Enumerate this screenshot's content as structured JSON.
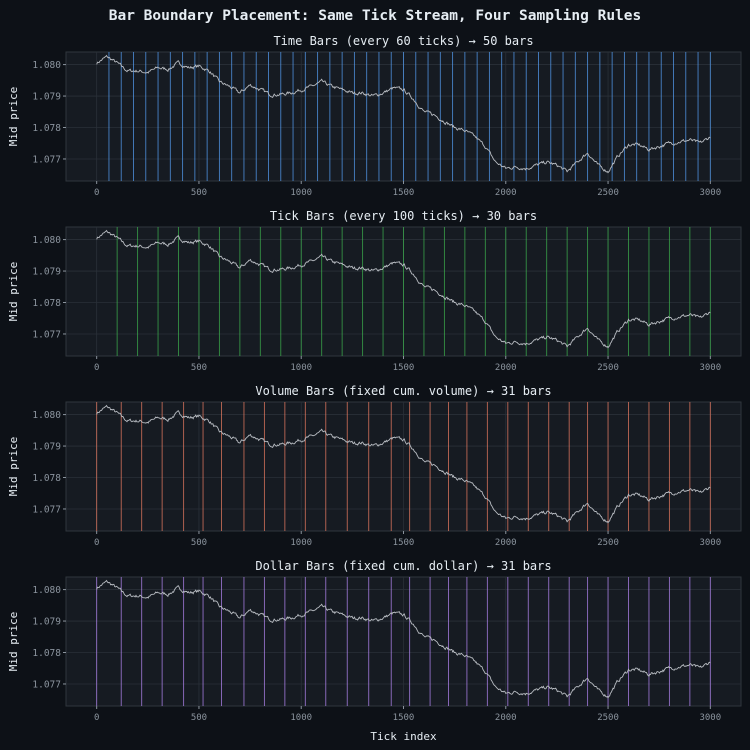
{
  "figure_title": "Bar Boundary Placement: Same Tick Stream, Four Sampling Rules",
  "colors": {
    "background": "#0d1117",
    "panel": "#161b22",
    "price_line": "#b8bcc2",
    "time_bars": "#58a6ff",
    "tick_bars": "#3fb950",
    "volume_bars": "#f78166",
    "dollar_bars": "#bc8cff"
  },
  "chart_data": [
    {
      "type": "line",
      "title": "Time Bars  (every 60 ticks)  →  50 bars",
      "ylabel": "Mid price",
      "xlabel": "",
      "xlim": [
        -150,
        3150
      ],
      "ylim": [
        1.0763,
        1.0804
      ],
      "x_ticks": [
        "0",
        "500",
        "1000",
        "1500",
        "2000",
        "2500",
        "3000"
      ],
      "y_ticks": [
        "1.077",
        "1.078",
        "1.079",
        "1.080"
      ],
      "grid": true,
      "boundary_color": "#58a6ff",
      "boundaries": [
        60,
        120,
        180,
        240,
        300,
        360,
        420,
        480,
        540,
        600,
        660,
        720,
        780,
        840,
        900,
        960,
        1020,
        1080,
        1140,
        1200,
        1260,
        1320,
        1380,
        1440,
        1500,
        1560,
        1620,
        1680,
        1740,
        1800,
        1860,
        1920,
        1980,
        2040,
        2100,
        2160,
        2220,
        2280,
        2340,
        2400,
        2460,
        2520,
        2580,
        2640,
        2700,
        2760,
        2820,
        2880,
        2940,
        3000
      ]
    },
    {
      "type": "line",
      "title": "Tick Bars  (every 100 ticks)  →  30 bars",
      "ylabel": "Mid price",
      "xlabel": "",
      "xlim": [
        -150,
        3150
      ],
      "ylim": [
        1.0763,
        1.0804
      ],
      "x_ticks": [
        "0",
        "500",
        "1000",
        "1500",
        "2000",
        "2500",
        "3000"
      ],
      "y_ticks": [
        "1.077",
        "1.078",
        "1.079",
        "1.080"
      ],
      "grid": true,
      "boundary_color": "#3fb950",
      "boundaries": [
        100,
        200,
        300,
        400,
        500,
        600,
        700,
        800,
        900,
        1000,
        1100,
        1200,
        1300,
        1400,
        1500,
        1600,
        1700,
        1800,
        1900,
        2000,
        2100,
        2200,
        2300,
        2400,
        2500,
        2600,
        2700,
        2800,
        2900,
        3000
      ]
    },
    {
      "type": "line",
      "title": "Volume Bars  (fixed cum. volume)  →  31 bars",
      "ylabel": "Mid price",
      "xlabel": "",
      "xlim": [
        -150,
        3150
      ],
      "ylim": [
        1.0763,
        1.0804
      ],
      "x_ticks": [
        "0",
        "500",
        "1000",
        "1500",
        "2000",
        "2500",
        "3000"
      ],
      "y_ticks": [
        "1.077",
        "1.078",
        "1.079",
        "1.080"
      ],
      "grid": true,
      "boundary_color": "#f78166",
      "boundaries": [
        0,
        120,
        220,
        320,
        425,
        520,
        610,
        720,
        820,
        920,
        1020,
        1120,
        1225,
        1330,
        1440,
        1530,
        1630,
        1720,
        1810,
        1910,
        2010,
        2110,
        2210,
        2310,
        2400,
        2500,
        2600,
        2700,
        2800,
        2900,
        3000
      ]
    },
    {
      "type": "line",
      "title": "Dollar Bars  (fixed cum. dollar)  →  31 bars",
      "ylabel": "Mid price",
      "xlabel": "Tick index",
      "xlim": [
        -150,
        3150
      ],
      "ylim": [
        1.0763,
        1.0804
      ],
      "x_ticks": [
        "0",
        "500",
        "1000",
        "1500",
        "2000",
        "2500",
        "3000"
      ],
      "y_ticks": [
        "1.077",
        "1.078",
        "1.079",
        "1.080"
      ],
      "grid": true,
      "boundary_color": "#bc8cff",
      "boundaries": [
        0,
        120,
        220,
        320,
        425,
        520,
        610,
        720,
        820,
        920,
        1020,
        1120,
        1225,
        1330,
        1440,
        1530,
        1630,
        1720,
        1810,
        1910,
        2010,
        2110,
        2210,
        2310,
        2400,
        2500,
        2600,
        2700,
        2800,
        2900,
        3000
      ]
    }
  ],
  "price_series": {
    "name": "",
    "x": [
      0,
      50,
      100,
      150,
      200,
      250,
      300,
      350,
      400,
      450,
      500,
      550,
      600,
      650,
      700,
      750,
      800,
      850,
      900,
      950,
      1000,
      1050,
      1100,
      1150,
      1200,
      1250,
      1300,
      1350,
      1400,
      1450,
      1500,
      1550,
      1600,
      1650,
      1700,
      1750,
      1800,
      1850,
      1900,
      1950,
      2000,
      2050,
      2100,
      2150,
      2200,
      2250,
      2300,
      2350,
      2400,
      2450,
      2500,
      2550,
      2600,
      2650,
      2700,
      2750,
      2800,
      2850,
      2900,
      2950,
      3000
    ],
    "y": [
      1.08005,
      1.08025,
      1.08005,
      1.0798,
      1.0798,
      1.07975,
      1.0799,
      1.07985,
      1.08005,
      1.0799,
      1.07995,
      1.0798,
      1.07945,
      1.0793,
      1.0791,
      1.07935,
      1.0792,
      1.07905,
      1.07905,
      1.0791,
      1.0792,
      1.0793,
      1.07945,
      1.0793,
      1.0792,
      1.0791,
      1.0791,
      1.079,
      1.0791,
      1.07925,
      1.0792,
      1.0789,
      1.0785,
      1.0784,
      1.0782,
      1.078,
      1.0779,
      1.0777,
      1.0774,
      1.0769,
      1.0767,
      1.07675,
      1.0767,
      1.0768,
      1.0769,
      1.0768,
      1.0766,
      1.0769,
      1.0772,
      1.0768,
      1.0766,
      1.0771,
      1.07745,
      1.07745,
      1.0773,
      1.0774,
      1.0775,
      1.07755,
      1.0776,
      1.0775,
      1.0777
    ]
  }
}
